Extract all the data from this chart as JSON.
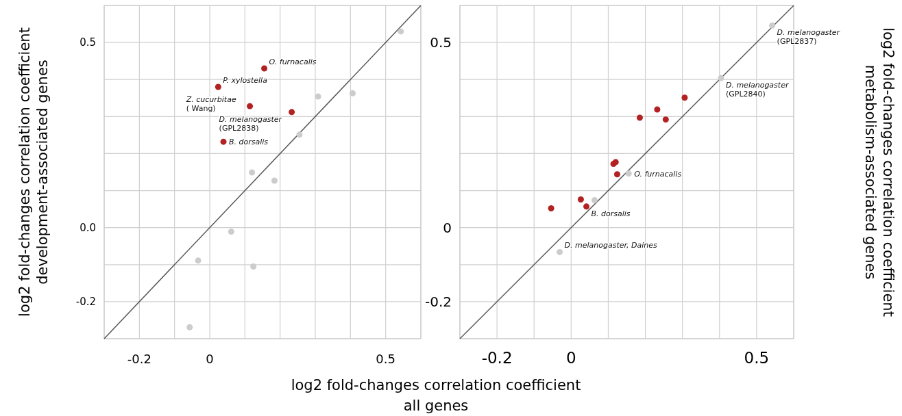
{
  "chart_data": [
    {
      "type": "scatter",
      "xlabel": "log2 fold-changes correlation coefficient\nall genes",
      "ylabel": "log2 fold-changes correlation coefficient\ndevelopment-associated genes",
      "xlim": [
        -0.3,
        0.6
      ],
      "ylim": [
        -0.3,
        0.6
      ],
      "xticks": [
        {
          "value": -0.3,
          "label": null
        },
        {
          "value": -0.2,
          "label": "-0.2"
        },
        {
          "value": -0.1,
          "label": null
        },
        {
          "value": 0,
          "label": "0"
        },
        {
          "value": 0.1,
          "label": null
        },
        {
          "value": 0.2,
          "label": null
        },
        {
          "value": 0.3,
          "label": null
        },
        {
          "value": 0.4,
          "label": null
        },
        {
          "value": 0.5,
          "label": "0.5"
        },
        {
          "value": 0.6,
          "label": null
        }
      ],
      "yticks": [
        {
          "value": -0.3,
          "label": null
        },
        {
          "value": -0.2,
          "label": "-0.2"
        },
        {
          "value": -0.1,
          "label": null
        },
        {
          "value": 0,
          "label": "0.0"
        },
        {
          "value": 0.1,
          "label": null
        },
        {
          "value": 0.2,
          "label": null
        },
        {
          "value": 0.3,
          "label": null
        },
        {
          "value": 0.4,
          "label": null
        },
        {
          "value": 0.5,
          "label": "0.5"
        },
        {
          "value": 0.6,
          "label": null
        }
      ],
      "grid": true,
      "marker": "circle",
      "series": [
        {
          "type": "line",
          "marker": "none",
          "color": "#555555",
          "x": [
            -0.3,
            0.6
          ],
          "values": [
            -0.3,
            0.6
          ]
        },
        {
          "color": "#cccccc",
          "x": [
            0.543,
            0.308,
            0.406,
            0.255,
            0.12,
            0.184,
            0.061,
            -0.033,
            0.124,
            -0.057
          ],
          "values": [
            0.53,
            0.354,
            0.363,
            0.251,
            0.149,
            0.127,
            -0.011,
            -0.089,
            -0.105,
            -0.269
          ]
        },
        {
          "color": "#b22222",
          "x": [
            0.155,
            0.024,
            0.114,
            0.233,
            0.039
          ],
          "values": [
            0.43,
            0.38,
            0.328,
            0.312,
            0.232
          ]
        }
      ],
      "annotations": [
        {
          "text": "O. furnacalis",
          "x": 0.155,
          "y": 0.43
        },
        {
          "text": "P. xylostella",
          "x": 0.024,
          "y": 0.38
        },
        {
          "text": "Z. cucurbitae\n( Wang)",
          "x": 0.114,
          "y": 0.328
        },
        {
          "text": "D. melanogaster\n(GPL2838)",
          "x": 0.233,
          "y": 0.312
        },
        {
          "text": "B. dorsalis",
          "x": 0.039,
          "y": 0.232
        }
      ]
    },
    {
      "type": "scatter",
      "ylabel": "log2 fold-changes correlation coefficient\nmetabolism-associated genes",
      "xlim": [
        -0.3,
        0.6
      ],
      "ylim": [
        -0.3,
        0.6
      ],
      "xticks": [
        {
          "value": -0.3,
          "label": null
        },
        {
          "value": -0.2,
          "label": "-0.2"
        },
        {
          "value": -0.1,
          "label": null
        },
        {
          "value": 0,
          "label": "0"
        },
        {
          "value": 0.1,
          "label": null
        },
        {
          "value": 0.2,
          "label": null
        },
        {
          "value": 0.3,
          "label": null
        },
        {
          "value": 0.4,
          "label": null
        },
        {
          "value": 0.5,
          "label": "0.5"
        },
        {
          "value": 0.6,
          "label": null
        }
      ],
      "yticks": [
        {
          "value": -0.3,
          "label": null
        },
        {
          "value": -0.2,
          "label": "-0.2"
        },
        {
          "value": -0.1,
          "label": null
        },
        {
          "value": 0,
          "label": "0"
        },
        {
          "value": 0.1,
          "label": null
        },
        {
          "value": 0.2,
          "label": null
        },
        {
          "value": 0.3,
          "label": null
        },
        {
          "value": 0.4,
          "label": null
        },
        {
          "value": 0.5,
          "label": "0.5"
        },
        {
          "value": 0.6,
          "label": null
        }
      ],
      "grid": true,
      "marker": "circle",
      "series": [
        {
          "type": "line",
          "marker": "none",
          "color": "#555555",
          "x": [
            -0.3,
            0.6
          ],
          "values": [
            -0.3,
            0.6
          ]
        },
        {
          "color": "#cccccc",
          "x": [
            0.542,
            0.404,
            0.155,
            0.063,
            -0.031
          ],
          "values": [
            0.546,
            0.404,
            0.146,
            0.074,
            -0.066
          ]
        },
        {
          "color": "#b22222",
          "x": [
            0.306,
            0.232,
            0.185,
            0.255,
            0.12,
            0.114,
            0.124,
            0.026,
            0.041,
            -0.054
          ],
          "values": [
            0.351,
            0.319,
            0.297,
            0.292,
            0.177,
            0.172,
            0.144,
            0.076,
            0.057,
            0.052
          ]
        }
      ],
      "annotations": [
        {
          "text": "D. melanogaster\n(GPL2837)",
          "x": 0.542,
          "y": 0.546
        },
        {
          "text": "D. melanogaster\n(GPL2840)",
          "x": 0.404,
          "y": 0.404
        },
        {
          "text": "O. furnacalis",
          "x": 0.155,
          "y": 0.146
        },
        {
          "text": "B. dorsalis",
          "x": 0.041,
          "y": 0.057
        },
        {
          "text": "D. melanogaster, Daines",
          "x": -0.031,
          "y": -0.066
        }
      ]
    }
  ]
}
